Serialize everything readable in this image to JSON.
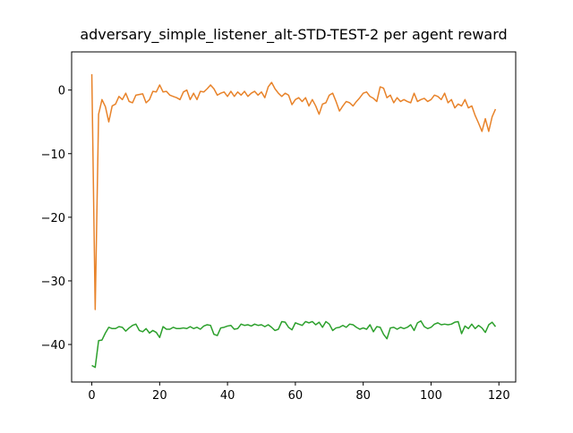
{
  "chart_data": {
    "type": "line",
    "title": "adversary_simple_listener_alt-STD-TEST-2 per agent reward",
    "x": [
      0,
      1,
      2,
      3,
      4,
      5,
      6,
      7,
      8,
      9,
      10,
      11,
      12,
      13,
      14,
      15,
      16,
      17,
      18,
      19,
      20,
      21,
      22,
      23,
      24,
      25,
      26,
      27,
      28,
      29,
      30,
      31,
      32,
      33,
      34,
      35,
      36,
      37,
      38,
      39,
      40,
      41,
      42,
      43,
      44,
      45,
      46,
      47,
      48,
      49,
      50,
      51,
      52,
      53,
      54,
      55,
      56,
      57,
      58,
      59,
      60,
      61,
      62,
      63,
      64,
      65,
      66,
      67,
      68,
      69,
      70,
      71,
      72,
      73,
      74,
      75,
      76,
      77,
      78,
      79,
      80,
      81,
      82,
      83,
      84,
      85,
      86,
      87,
      88,
      89,
      90,
      91,
      92,
      93,
      94,
      95,
      96,
      97,
      98,
      99,
      100,
      101,
      102,
      103,
      104,
      105,
      106,
      107,
      108,
      109,
      110,
      111,
      112,
      113,
      114,
      115,
      116,
      117,
      118,
      119
    ],
    "series": [
      {
        "color": "#e8832a",
        "values": [
          2.5,
          -34.5,
          -3.8,
          -1.5,
          -2.6,
          -5.0,
          -2.5,
          -2.2,
          -1.0,
          -1.5,
          -0.5,
          -1.8,
          -2.0,
          -0.8,
          -0.7,
          -0.6,
          -2.0,
          -1.5,
          -0.2,
          -0.3,
          0.8,
          -0.3,
          -0.2,
          -0.8,
          -1.0,
          -1.2,
          -1.5,
          -0.3,
          0.0,
          -1.5,
          -0.5,
          -1.5,
          -0.2,
          -0.3,
          0.2,
          0.8,
          0.2,
          -0.8,
          -0.5,
          -0.3,
          -1.0,
          -0.2,
          -1.0,
          -0.3,
          -0.8,
          -0.2,
          -1.0,
          -0.5,
          -0.2,
          -0.8,
          -0.3,
          -1.2,
          0.5,
          1.2,
          0.2,
          -0.5,
          -1.0,
          -0.5,
          -0.8,
          -2.3,
          -1.5,
          -1.2,
          -1.8,
          -1.2,
          -2.5,
          -1.5,
          -2.5,
          -3.8,
          -2.2,
          -2.0,
          -0.8,
          -0.5,
          -1.8,
          -3.3,
          -2.5,
          -1.8,
          -2.0,
          -2.5,
          -1.8,
          -1.2,
          -0.5,
          -0.3,
          -1.0,
          -1.3,
          -1.8,
          0.5,
          0.3,
          -1.2,
          -0.8,
          -2.0,
          -1.2,
          -1.8,
          -1.5,
          -1.8,
          -2.0,
          -0.5,
          -1.8,
          -1.5,
          -1.3,
          -1.8,
          -1.5,
          -0.8,
          -1.0,
          -1.5,
          -0.5,
          -2.0,
          -1.5,
          -2.8,
          -2.2,
          -2.5,
          -1.5,
          -2.8,
          -2.5,
          -4.0,
          -5.2,
          -6.5,
          -4.5,
          -6.5,
          -4.2,
          -3.0
        ]
      },
      {
        "color": "#2ca02c",
        "values": [
          -43.3,
          -43.6,
          -39.4,
          -39.3,
          -38.2,
          -37.3,
          -37.5,
          -37.5,
          -37.2,
          -37.3,
          -37.9,
          -37.4,
          -37.0,
          -36.8,
          -37.8,
          -38.0,
          -37.5,
          -38.2,
          -37.8,
          -38.1,
          -38.9,
          -37.2,
          -37.6,
          -37.6,
          -37.3,
          -37.5,
          -37.5,
          -37.4,
          -37.5,
          -37.2,
          -37.5,
          -37.3,
          -37.6,
          -37.1,
          -36.9,
          -37.0,
          -38.4,
          -38.6,
          -37.4,
          -37.3,
          -37.1,
          -37.0,
          -37.6,
          -37.5,
          -36.8,
          -37.0,
          -36.9,
          -37.1,
          -36.8,
          -37.0,
          -36.9,
          -37.2,
          -36.9,
          -37.3,
          -37.8,
          -37.6,
          -36.4,
          -36.5,
          -37.3,
          -37.7,
          -36.6,
          -36.8,
          -37.0,
          -36.4,
          -36.6,
          -36.4,
          -36.9,
          -36.5,
          -37.3,
          -36.4,
          -36.8,
          -37.8,
          -37.4,
          -37.3,
          -37.0,
          -37.3,
          -36.8,
          -36.9,
          -37.3,
          -37.6,
          -37.4,
          -37.6,
          -36.9,
          -38.0,
          -37.2,
          -37.3,
          -38.4,
          -39.1,
          -37.4,
          -37.3,
          -37.6,
          -37.3,
          -37.5,
          -37.3,
          -36.9,
          -37.8,
          -36.6,
          -36.3,
          -37.2,
          -37.5,
          -37.3,
          -36.8,
          -36.6,
          -36.9,
          -36.8,
          -36.9,
          -36.8,
          -36.5,
          -36.4,
          -38.3,
          -37.1,
          -37.5,
          -36.8,
          -37.5,
          -37.0,
          -37.4,
          -38.1,
          -36.9,
          -36.5,
          -37.2
        ]
      }
    ],
    "xlim": [
      -5.95,
      124.95
    ],
    "ylim": [
      -45.9,
      6.0
    ],
    "xticks": [
      0,
      20,
      40,
      60,
      80,
      100,
      120
    ],
    "yticks": [
      0,
      {
        "value": -10,
        "label": "−10"
      },
      {
        "value": -20,
        "label": "−20"
      },
      {
        "value": -30,
        "label": "−30"
      },
      {
        "value": -40,
        "label": "−40"
      }
    ]
  }
}
